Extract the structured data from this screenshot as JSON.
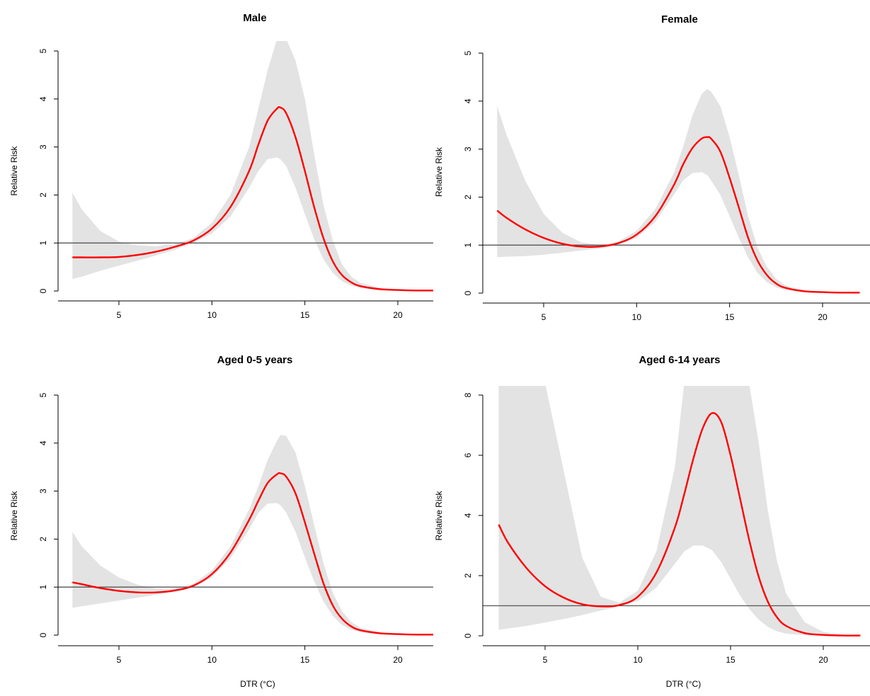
{
  "colors": {
    "curve": "#ff0000",
    "ci_band": "#e3e3e3",
    "reference_line": "#555555",
    "axis": "#000000"
  },
  "chart_data": [
    {
      "type": "line",
      "title": "Male",
      "xlabel": "",
      "ylabel": "Relative Risk",
      "xlim": [
        2.4,
        22
      ],
      "ylim": [
        0,
        5
      ],
      "xticks": [
        5,
        10,
        15,
        20
      ],
      "yticks": [
        0,
        1,
        2,
        3,
        4,
        5
      ],
      "reference_y": 1,
      "x": [
        2.5,
        3,
        4,
        5,
        6,
        7,
        8,
        9,
        10,
        11,
        12,
        12.5,
        13,
        13.5,
        13.7,
        14,
        14.5,
        15,
        15.5,
        16,
        16.5,
        17,
        17.5,
        18,
        19,
        20,
        21,
        22
      ],
      "rr": [
        0.7,
        0.7,
        0.7,
        0.71,
        0.75,
        0.82,
        0.92,
        1.05,
        1.3,
        1.75,
        2.5,
        3.05,
        3.55,
        3.8,
        3.82,
        3.7,
        3.2,
        2.5,
        1.75,
        1.1,
        0.62,
        0.33,
        0.18,
        0.1,
        0.04,
        0.02,
        0.01,
        0.01
      ],
      "ci_low": [
        0.25,
        0.3,
        0.42,
        0.53,
        0.63,
        0.74,
        0.86,
        1.0,
        1.2,
        1.55,
        2.15,
        2.5,
        2.75,
        2.78,
        2.74,
        2.6,
        2.15,
        1.6,
        1.08,
        0.66,
        0.38,
        0.2,
        0.11,
        0.06,
        0.02,
        0.01,
        0.0,
        0.0
      ],
      "ci_high": [
        2.05,
        1.7,
        1.25,
        1.03,
        0.95,
        0.93,
        0.98,
        1.1,
        1.42,
        2.0,
        3.0,
        3.8,
        4.6,
        5.25,
        5.25,
        5.25,
        4.8,
        4.0,
        2.85,
        1.8,
        1.05,
        0.55,
        0.3,
        0.17,
        0.07,
        0.03,
        0.02,
        0.01
      ]
    },
    {
      "type": "line",
      "title": "Female",
      "xlabel": "",
      "ylabel": "Relative Risk",
      "xlim": [
        2.4,
        22
      ],
      "ylim": [
        0,
        5
      ],
      "xticks": [
        5,
        10,
        15,
        20
      ],
      "yticks": [
        0,
        1,
        2,
        3,
        4,
        5
      ],
      "reference_y": 1,
      "x": [
        2.5,
        3,
        4,
        5,
        6,
        7,
        8,
        9,
        10,
        11,
        12,
        12.5,
        13,
        13.5,
        13.8,
        14,
        14.5,
        15,
        15.5,
        16,
        16.5,
        17,
        17.5,
        18,
        19,
        20,
        21,
        22
      ],
      "rr": [
        1.72,
        1.57,
        1.33,
        1.15,
        1.03,
        0.97,
        0.97,
        1.04,
        1.22,
        1.6,
        2.25,
        2.68,
        3.02,
        3.22,
        3.25,
        3.22,
        2.95,
        2.4,
        1.78,
        1.15,
        0.68,
        0.38,
        0.2,
        0.11,
        0.04,
        0.02,
        0.01,
        0.01
      ],
      "ci_low": [
        0.75,
        0.76,
        0.77,
        0.8,
        0.84,
        0.89,
        0.93,
        1.0,
        1.15,
        1.48,
        2.05,
        2.35,
        2.5,
        2.52,
        2.46,
        2.35,
        2.05,
        1.6,
        1.15,
        0.74,
        0.42,
        0.23,
        0.12,
        0.06,
        0.02,
        0.01,
        0.0,
        0.0
      ],
      "ci_high": [
        3.9,
        3.3,
        2.35,
        1.65,
        1.26,
        1.06,
        1.0,
        1.07,
        1.3,
        1.75,
        2.5,
        3.05,
        3.7,
        4.15,
        4.25,
        4.2,
        3.9,
        3.25,
        2.45,
        1.6,
        0.95,
        0.55,
        0.3,
        0.16,
        0.06,
        0.03,
        0.02,
        0.01
      ]
    },
    {
      "type": "line",
      "title": "Aged 0-5 years",
      "xlabel": "DTR (°C)",
      "ylabel": "Relative Risk",
      "xlim": [
        2.4,
        22
      ],
      "ylim": [
        0,
        5
      ],
      "xticks": [
        5,
        10,
        15,
        20
      ],
      "yticks": [
        0,
        1,
        2,
        3,
        4,
        5
      ],
      "reference_y": 1,
      "x": [
        2.5,
        3,
        4,
        5,
        6,
        7,
        8,
        9,
        10,
        11,
        12,
        12.5,
        13,
        13.5,
        13.7,
        14,
        14.5,
        15,
        15.5,
        16,
        16.5,
        17,
        17.5,
        18,
        19,
        20,
        21,
        22
      ],
      "rr": [
        1.1,
        1.06,
        0.98,
        0.92,
        0.89,
        0.89,
        0.93,
        1.03,
        1.27,
        1.72,
        2.4,
        2.8,
        3.17,
        3.35,
        3.37,
        3.3,
        2.95,
        2.35,
        1.7,
        1.08,
        0.62,
        0.34,
        0.18,
        0.1,
        0.04,
        0.02,
        0.01,
        0.01
      ],
      "ci_low": [
        0.57,
        0.6,
        0.66,
        0.72,
        0.78,
        0.84,
        0.9,
        0.99,
        1.2,
        1.6,
        2.2,
        2.55,
        2.74,
        2.75,
        2.7,
        2.55,
        2.15,
        1.62,
        1.12,
        0.7,
        0.4,
        0.21,
        0.11,
        0.06,
        0.02,
        0.01,
        0.0,
        0.0
      ],
      "ci_high": [
        2.15,
        1.85,
        1.45,
        1.2,
        1.05,
        0.97,
        0.97,
        1.07,
        1.35,
        1.85,
        2.62,
        3.1,
        3.65,
        4.05,
        4.17,
        4.15,
        3.8,
        3.1,
        2.3,
        1.5,
        0.88,
        0.5,
        0.27,
        0.15,
        0.06,
        0.03,
        0.02,
        0.01
      ]
    },
    {
      "type": "line",
      "title": "Aged 6-14 years",
      "xlabel": "DTR (°C)",
      "ylabel": "Relative Risk",
      "xlim": [
        2.4,
        22
      ],
      "ylim": [
        0,
        8
      ],
      "xticks": [
        5,
        10,
        15,
        20
      ],
      "yticks": [
        0,
        2,
        4,
        6,
        8
      ],
      "reference_y": 1,
      "x": [
        2.5,
        3,
        4,
        5,
        6,
        7,
        8,
        9,
        10,
        11,
        12,
        12.5,
        13,
        13.5,
        14,
        14.5,
        15,
        15.5,
        16,
        16.5,
        17,
        17.5,
        18,
        19,
        20,
        21,
        22
      ],
      "rr": [
        3.7,
        3.1,
        2.25,
        1.65,
        1.27,
        1.05,
        0.98,
        1.02,
        1.3,
        2.1,
        3.6,
        4.7,
        5.9,
        6.9,
        7.4,
        7.1,
        6.0,
        4.6,
        3.2,
        2.0,
        1.15,
        0.62,
        0.33,
        0.09,
        0.03,
        0.01,
        0.01
      ],
      "ci_low": [
        0.2,
        0.24,
        0.33,
        0.44,
        0.56,
        0.69,
        0.84,
        0.98,
        1.15,
        1.6,
        2.4,
        2.8,
        3.0,
        3.0,
        2.85,
        2.45,
        1.9,
        1.35,
        0.9,
        0.55,
        0.3,
        0.15,
        0.07,
        0.02,
        0.01,
        0.0,
        0.0
      ],
      "ci_high": [
        8.4,
        8.4,
        8.4,
        8.4,
        5.5,
        2.6,
        1.3,
        1.1,
        1.5,
        2.8,
        5.6,
        8.4,
        8.4,
        8.4,
        8.4,
        8.4,
        8.4,
        8.4,
        8.4,
        6.5,
        4.2,
        2.5,
        1.4,
        0.45,
        0.13,
        0.04,
        0.01
      ]
    }
  ]
}
